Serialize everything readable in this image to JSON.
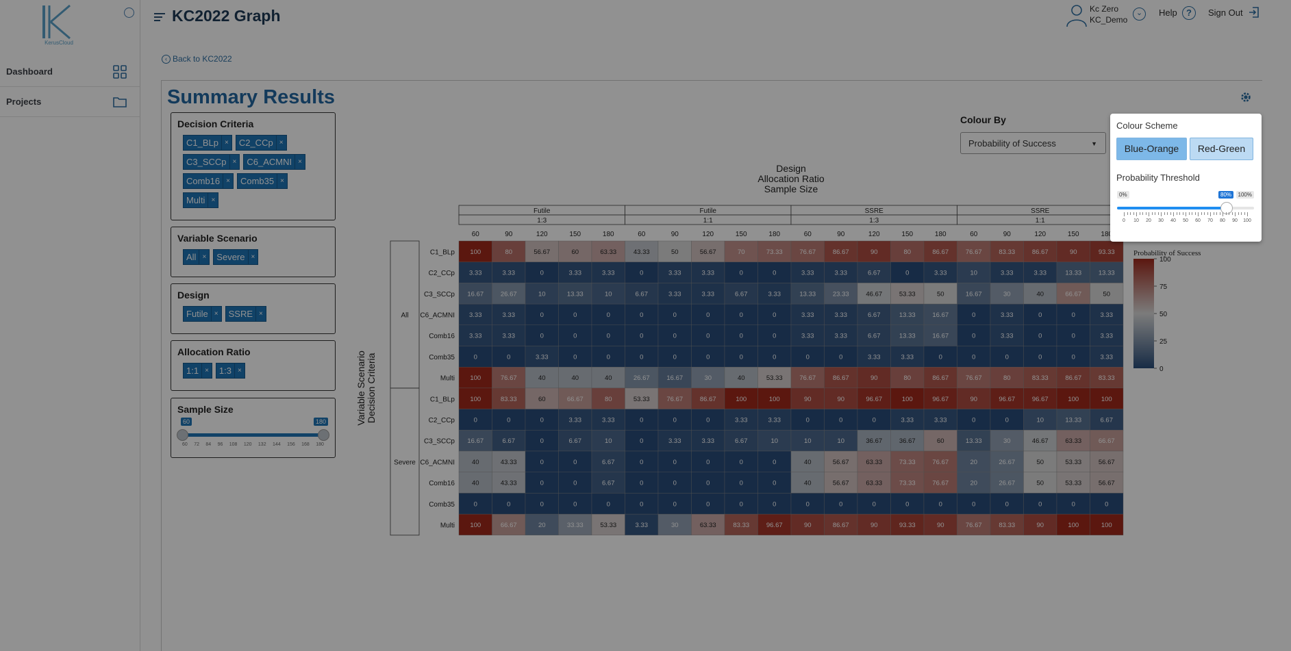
{
  "sidebar": {
    "logo_text": "KerusCloud",
    "items": [
      {
        "label": "Dashboard",
        "icon": "grid-icon"
      },
      {
        "label": "Projects",
        "icon": "folder-icon"
      }
    ]
  },
  "header": {
    "title": "KC2022 Graph",
    "user_name": "Kc Zero",
    "user_org": "KC_Demo",
    "help": "Help",
    "sign_out": "Sign Out"
  },
  "back_link": "Back to KC2022",
  "summary_title": "Summary Results",
  "filters": {
    "decision_criteria": {
      "title": "Decision Criteria",
      "chips": [
        "C1_BLp",
        "C2_CCp",
        "C3_SCCp",
        "C6_ACMNI",
        "Comb16",
        "Comb35",
        "Multi"
      ]
    },
    "variable_scenario": {
      "title": "Variable Scenario",
      "chips": [
        "All",
        "Severe"
      ]
    },
    "design": {
      "title": "Design",
      "chips": [
        "Futile",
        "SSRE"
      ]
    },
    "allocation_ratio": {
      "title": "Allocation Ratio",
      "chips": [
        "1:1",
        "1:3"
      ]
    },
    "sample_size": {
      "title": "Sample Size",
      "min_label": "60",
      "max_label": "180",
      "ticks": [
        "60",
        "72",
        "84",
        "96",
        "108",
        "120",
        "132",
        "144",
        "156",
        "168",
        "180"
      ]
    }
  },
  "colour_by": {
    "label": "Colour By",
    "selected": "Probability of Success"
  },
  "popup": {
    "colour_scheme_title": "Colour Scheme",
    "schemes": [
      "Blue-Orange",
      "Red-Green"
    ],
    "active_scheme": "Blue-Orange",
    "threshold_title": "Probability Threshold",
    "threshold_min": "0%",
    "threshold_max": "100%",
    "threshold_value_label": "80%",
    "threshold_value": 0.8,
    "threshold_ticks": [
      "0",
      "10",
      "20",
      "30",
      "40",
      "50",
      "60",
      "70",
      "80",
      "90",
      "100"
    ]
  },
  "chart_data": {
    "type": "heatmap",
    "top_axis_title_lines": [
      "Design",
      "Allocation Ratio",
      "Sample Size"
    ],
    "left_axis_title_lines": [
      "Variable Scenario",
      "Decision Criteria"
    ],
    "legend_title": "Probability of Success",
    "legend_ticks": [
      "100",
      "75",
      "50",
      "25",
      "0"
    ],
    "colors": {
      "low": "#2a4d7a",
      "mid": "#d9d9d9",
      "high": "#a12a1c"
    },
    "column_groups": [
      {
        "design": "Futile",
        "ratio": "1:3",
        "sizes": [
          "60",
          "90",
          "120",
          "150",
          "180"
        ]
      },
      {
        "design": "Futile",
        "ratio": "1:1",
        "sizes": [
          "60",
          "90",
          "120",
          "150",
          "180"
        ]
      },
      {
        "design": "SSRE",
        "ratio": "1:3",
        "sizes": [
          "60",
          "90",
          "120",
          "150",
          "180"
        ]
      },
      {
        "design": "SSRE",
        "ratio": "1:1",
        "sizes": [
          "60",
          "90",
          "120",
          "150",
          "180"
        ]
      }
    ],
    "row_groups": [
      {
        "scenario": "All",
        "rows": [
          {
            "criteria": "C1_BLp",
            "values": [
              "100",
              "80",
              "56.67",
              "60",
              "63.33",
              "43.33",
              "50",
              "56.67",
              "70",
              "73.33",
              "76.67",
              "86.67",
              "90",
              "80",
              "86.67",
              "76.67",
              "83.33",
              "86.67",
              "90",
              "93.33"
            ]
          },
          {
            "criteria": "C2_CCp",
            "values": [
              "3.33",
              "3.33",
              "0",
              "3.33",
              "3.33",
              "0",
              "3.33",
              "3.33",
              "0",
              "0",
              "3.33",
              "3.33",
              "6.67",
              "0",
              "3.33",
              "10",
              "3.33",
              "3.33",
              "13.33",
              "13.33"
            ]
          },
          {
            "criteria": "C3_SCCp",
            "values": [
              "16.67",
              "26.67",
              "10",
              "13.33",
              "10",
              "6.67",
              "3.33",
              "3.33",
              "6.67",
              "3.33",
              "13.33",
              "23.33",
              "46.67",
              "53.33",
              "50",
              "16.67",
              "30",
              "40",
              "66.67",
              "50"
            ]
          },
          {
            "criteria": "C6_ACMNI",
            "values": [
              "3.33",
              "3.33",
              "0",
              "0",
              "0",
              "0",
              "0",
              "0",
              "0",
              "0",
              "3.33",
              "3.33",
              "6.67",
              "13.33",
              "16.67",
              "0",
              "3.33",
              "0",
              "0",
              "3.33"
            ]
          },
          {
            "criteria": "Comb16",
            "values": [
              "3.33",
              "3.33",
              "0",
              "0",
              "0",
              "0",
              "0",
              "0",
              "0",
              "0",
              "3.33",
              "3.33",
              "6.67",
              "13.33",
              "16.67",
              "0",
              "3.33",
              "0",
              "0",
              "3.33"
            ]
          },
          {
            "criteria": "Comb35",
            "values": [
              "0",
              "0",
              "3.33",
              "0",
              "0",
              "0",
              "0",
              "0",
              "0",
              "0",
              "0",
              "0",
              "3.33",
              "3.33",
              "0",
              "0",
              "0",
              "0",
              "0",
              "3.33"
            ]
          },
          {
            "criteria": "Multi",
            "values": [
              "100",
              "76.67",
              "40",
              "40",
              "40",
              "26.67",
              "16.67",
              "30",
              "40",
              "53.33",
              "76.67",
              "86.67",
              "90",
              "80",
              "86.67",
              "76.67",
              "80",
              "83.33",
              "86.67",
              "83.33"
            ]
          }
        ]
      },
      {
        "scenario": "Severe",
        "rows": [
          {
            "criteria": "C1_BLp",
            "values": [
              "100",
              "83.33",
              "60",
              "66.67",
              "80",
              "53.33",
              "76.67",
              "86.67",
              "100",
              "100",
              "90",
              "90",
              "96.67",
              "100",
              "96.67",
              "90",
              "96.67",
              "96.67",
              "100",
              "100"
            ]
          },
          {
            "criteria": "C2_CCp",
            "values": [
              "0",
              "0",
              "0",
              "3.33",
              "3.33",
              "0",
              "0",
              "0",
              "3.33",
              "3.33",
              "0",
              "0",
              "0",
              "3.33",
              "3.33",
              "0",
              "0",
              "10",
              "13.33",
              "6.67"
            ]
          },
          {
            "criteria": "C3_SCCp",
            "values": [
              "16.67",
              "6.67",
              "0",
              "6.67",
              "10",
              "0",
              "3.33",
              "3.33",
              "6.67",
              "10",
              "10",
              "10",
              "36.67",
              "36.67",
              "60",
              "13.33",
              "30",
              "46.67",
              "63.33",
              "66.67"
            ]
          },
          {
            "criteria": "C6_ACMNI",
            "values": [
              "40",
              "43.33",
              "0",
              "0",
              "6.67",
              "0",
              "0",
              "0",
              "0",
              "0",
              "40",
              "56.67",
              "63.33",
              "73.33",
              "76.67",
              "20",
              "26.67",
              "50",
              "53.33",
              "56.67"
            ]
          },
          {
            "criteria": "Comb16",
            "values": [
              "40",
              "43.33",
              "0",
              "0",
              "6.67",
              "0",
              "0",
              "0",
              "0",
              "0",
              "40",
              "56.67",
              "63.33",
              "73.33",
              "76.67",
              "20",
              "26.67",
              "50",
              "53.33",
              "56.67"
            ]
          },
          {
            "criteria": "Comb35",
            "values": [
              "0",
              "0",
              "0",
              "0",
              "0",
              "0",
              "0",
              "0",
              "0",
              "0",
              "0",
              "0",
              "0",
              "0",
              "0",
              "0",
              "0",
              "0",
              "0",
              "0"
            ]
          },
          {
            "criteria": "Multi",
            "values": [
              "100",
              "66.67",
              "20",
              "33.33",
              "53.33",
              "3.33",
              "30",
              "63.33",
              "83.33",
              "96.67",
              "90",
              "86.67",
              "90",
              "93.33",
              "90",
              "76.67",
              "83.33",
              "90",
              "100",
              "100"
            ]
          }
        ]
      }
    ]
  }
}
